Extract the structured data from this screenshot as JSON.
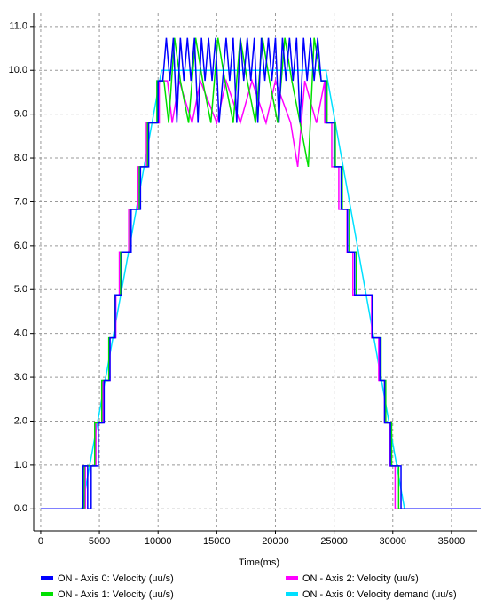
{
  "chart_data": {
    "type": "line",
    "x_label": "Time(ms)",
    "xlim": [
      -600,
      37200
    ],
    "ylim": [
      -0.5,
      11.3
    ],
    "xticks": [
      0,
      5000,
      10000,
      15000,
      20000,
      25000,
      30000,
      35000
    ],
    "yticks": [
      {
        "value": 0,
        "label": "0.0"
      },
      {
        "value": 1,
        "label": "1.0"
      },
      {
        "value": 2,
        "label": "2.0"
      },
      {
        "value": 3,
        "label": "3.0"
      },
      {
        "value": 4,
        "label": "4.0"
      },
      {
        "value": 5,
        "label": "5.0"
      },
      {
        "value": 6,
        "label": "6.0"
      },
      {
        "value": 7,
        "label": "7.0"
      },
      {
        "value": 8,
        "label": "8.0"
      },
      {
        "value": 9,
        "label": "9.0"
      },
      {
        "value": 10,
        "label": "10.0"
      },
      {
        "value": 11,
        "label": "11.0"
      }
    ],
    "grid": true,
    "series": [
      {
        "name": "ON  - Axis 0: Velocity (uu/s)",
        "color": "#0000ff",
        "x": [
          0,
          3600,
          3600,
          4000,
          4000,
          4300,
          4300,
          4900,
          4900,
          5400,
          5400,
          5900,
          5900,
          6350,
          6350,
          6900,
          6900,
          7700,
          7700,
          8500,
          8500,
          9200,
          9200,
          10000,
          10000,
          10400,
          10700,
          11000,
          11300,
          11600,
          11900,
          12200,
          12500,
          12800,
          13100,
          13400,
          13700,
          14000,
          14300,
          14600,
          14900,
          15200,
          15500,
          15800,
          16100,
          16400,
          16700,
          17000,
          17300,
          17600,
          17900,
          18200,
          18500,
          18800,
          19100,
          19400,
          19700,
          20000,
          20300,
          20600,
          20900,
          21200,
          21500,
          21800,
          22100,
          22400,
          22700,
          23000,
          23300,
          23600,
          23900,
          24300,
          24300,
          25000,
          25000,
          25600,
          25600,
          26150,
          26150,
          26750,
          26750,
          28250,
          28250,
          28900,
          28900,
          29300,
          29300,
          29800,
          29800,
          30700,
          30700,
          37500
        ],
        "values": [
          0,
          0,
          0.98,
          0.98,
          0,
          0,
          0.98,
          0.98,
          1.96,
          1.96,
          2.93,
          2.93,
          3.9,
          3.9,
          4.88,
          4.88,
          5.85,
          5.85,
          6.83,
          6.83,
          7.8,
          7.8,
          8.8,
          8.8,
          9.76,
          9.76,
          10.74,
          9.76,
          10.74,
          8.8,
          10.74,
          9.76,
          10.74,
          9.76,
          10.74,
          8.8,
          10.74,
          9.76,
          10.74,
          9.76,
          10.74,
          8.8,
          9.76,
          10.74,
          9.76,
          10.74,
          8.8,
          10.74,
          9.76,
          10.74,
          9.76,
          10.74,
          8.8,
          10.74,
          9.76,
          10.74,
          9.76,
          10.74,
          8.8,
          10.74,
          9.76,
          10.74,
          9.76,
          10.74,
          8.8,
          10.74,
          9.76,
          10.74,
          9.76,
          10.74,
          9.76,
          9.76,
          8.8,
          8.8,
          7.8,
          7.8,
          6.83,
          6.83,
          5.85,
          5.85,
          4.88,
          4.88,
          3.9,
          3.9,
          2.93,
          2.93,
          1.96,
          1.96,
          0.98,
          0.98,
          0,
          0
        ]
      },
      {
        "name": "ON  - Axis 1: Velocity (uu/s)",
        "color": "#00e000",
        "x": [
          0,
          3700,
          3700,
          4600,
          4600,
          5200,
          5200,
          5800,
          5800,
          6300,
          6300,
          6800,
          6800,
          7600,
          7600,
          8400,
          8400,
          9100,
          9100,
          9900,
          9900,
          10500,
          10900,
          11400,
          11900,
          12600,
          13200,
          13800,
          14500,
          15100,
          15700,
          16400,
          17000,
          17600,
          18300,
          18900,
          19500,
          20200,
          20800,
          21400,
          22100,
          22800,
          23300,
          23900,
          24400,
          24400,
          25100,
          25100,
          25700,
          25700,
          26300,
          26300,
          26900,
          26900,
          28300,
          28300,
          29000,
          29000,
          29400,
          29400,
          29900,
          29900,
          30500,
          30500,
          37500
        ],
        "values": [
          0,
          0,
          0.98,
          0.98,
          1.96,
          1.96,
          2.93,
          2.93,
          3.9,
          3.9,
          4.88,
          4.88,
          5.85,
          5.85,
          6.83,
          6.83,
          7.8,
          7.8,
          8.8,
          8.8,
          9.76,
          9.76,
          8.8,
          10.74,
          9.76,
          8.8,
          10.74,
          9.76,
          8.8,
          10.74,
          9.76,
          8.8,
          10.74,
          9.76,
          8.8,
          10.74,
          9.76,
          8.8,
          10.74,
          9.76,
          8.8,
          7.8,
          10.74,
          9.76,
          9.76,
          8.8,
          8.8,
          7.8,
          7.8,
          6.83,
          6.83,
          5.85,
          5.85,
          4.88,
          4.88,
          3.9,
          3.9,
          2.93,
          2.93,
          1.96,
          1.96,
          0.98,
          0.98,
          0,
          0
        ]
      },
      {
        "name": "ON  - Axis 2: Velocity (uu/s)",
        "color": "#ff00ff",
        "x": [
          0,
          3800,
          3800,
          4700,
          4700,
          5300,
          5300,
          5900,
          5900,
          6400,
          6400,
          6700,
          6700,
          7500,
          7500,
          8300,
          8300,
          9000,
          9000,
          10100,
          10100,
          10800,
          11200,
          11800,
          12900,
          13600,
          15000,
          15800,
          17000,
          18000,
          19200,
          20000,
          21300,
          21900,
          22500,
          23500,
          24200,
          24200,
          24800,
          24800,
          25400,
          25400,
          26100,
          26100,
          26600,
          26600,
          28200,
          28200,
          28800,
          28800,
          29300,
          29300,
          29700,
          29700,
          30200,
          30200,
          37500
        ],
        "values": [
          0,
          0,
          0.98,
          0.98,
          1.96,
          1.96,
          2.93,
          2.93,
          3.9,
          3.9,
          4.88,
          4.88,
          5.85,
          5.85,
          6.83,
          6.83,
          7.8,
          7.8,
          8.8,
          8.8,
          9.76,
          9.76,
          8.8,
          9.76,
          8.8,
          9.76,
          8.8,
          9.76,
          8.8,
          9.76,
          8.8,
          9.76,
          8.8,
          7.8,
          9.76,
          8.8,
          9.76,
          8.8,
          8.8,
          7.8,
          7.8,
          6.83,
          6.83,
          5.85,
          5.85,
          4.88,
          4.88,
          3.9,
          3.9,
          2.93,
          2.93,
          1.96,
          1.96,
          0.98,
          0.98,
          0,
          0
        ]
      },
      {
        "name": "ON  - Axis 0: Velocity demand (uu/s)",
        "color": "#00e0ff",
        "x": [
          0,
          3500,
          10300,
          24300,
          31000,
          37500
        ],
        "values": [
          0,
          0,
          10,
          10,
          0,
          0
        ]
      }
    ]
  }
}
